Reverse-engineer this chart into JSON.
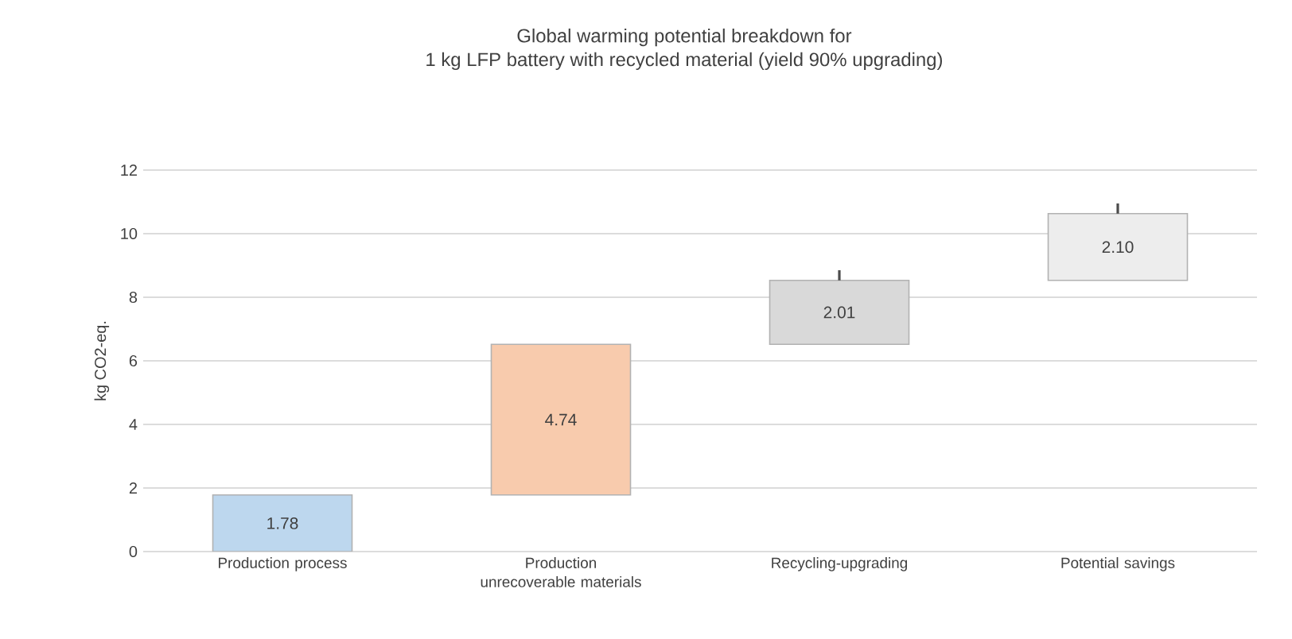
{
  "chart_data": {
    "type": "bar",
    "title": "Global warming potential breakdown for\n1 kg LFP battery with recycled material (yield 90% upgrading)",
    "ylabel": "kg CO2-eq.",
    "categories": [
      "Production process",
      "Production unrecoverable materials",
      "Recycling-upgrading",
      "Potential savings"
    ],
    "values": [
      1.78,
      4.74,
      2.01,
      2.1
    ],
    "base": [
      0,
      1.78,
      6.52,
      8.53
    ],
    "colors": [
      "#bdd7ee",
      "#f8cbad",
      "#d9d9d9",
      "#ededed"
    ],
    "value_labels": [
      "1.78",
      "4.74",
      "2.01",
      "2.10"
    ],
    "errors": [
      null,
      null,
      [
        8.53,
        8.85
      ],
      [
        10.63,
        10.95
      ]
    ],
    "ylim": [
      0,
      12
    ],
    "yticks": [
      0,
      2,
      4,
      6,
      8,
      10,
      12
    ],
    "grid": "y"
  }
}
